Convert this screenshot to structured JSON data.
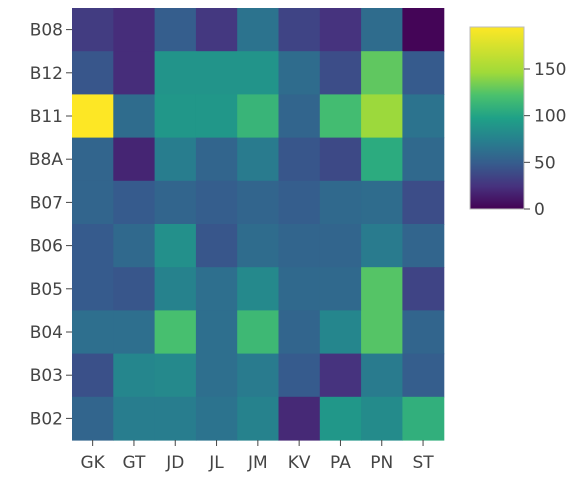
{
  "chart_data": {
    "type": "heatmap",
    "title": "",
    "xlabel": "",
    "ylabel": "",
    "x_categories": [
      "GK",
      "GT",
      "JD",
      "JL",
      "JM",
      "KV",
      "PA",
      "PN",
      "ST"
    ],
    "y_categories": [
      "B08",
      "B12",
      "B11",
      "B8A",
      "B07",
      "B06",
      "B05",
      "B04",
      "B03",
      "B02"
    ],
    "values": [
      [
        30,
        22,
        50,
        28,
        65,
        35,
        25,
        60,
        2
      ],
      [
        45,
        22,
        88,
        88,
        88,
        60,
        40,
        128,
        48
      ],
      [
        195,
        60,
        90,
        90,
        112,
        55,
        118,
        145,
        65
      ],
      [
        55,
        18,
        72,
        55,
        70,
        45,
        38,
        105,
        58
      ],
      [
        55,
        48,
        55,
        50,
        55,
        50,
        58,
        60,
        40
      ],
      [
        48,
        58,
        85,
        45,
        60,
        55,
        55,
        70,
        55
      ],
      [
        48,
        45,
        75,
        62,
        80,
        58,
        58,
        125,
        35
      ],
      [
        62,
        62,
        120,
        62,
        115,
        55,
        78,
        125,
        55
      ],
      [
        42,
        78,
        80,
        62,
        70,
        48,
        25,
        70,
        50
      ],
      [
        55,
        72,
        72,
        65,
        75,
        20,
        90,
        82,
        108
      ]
    ],
    "colorscale": "viridis",
    "colorbar": {
      "min": 0,
      "max": 195,
      "ticks": [
        0,
        50,
        100,
        150
      ]
    }
  }
}
